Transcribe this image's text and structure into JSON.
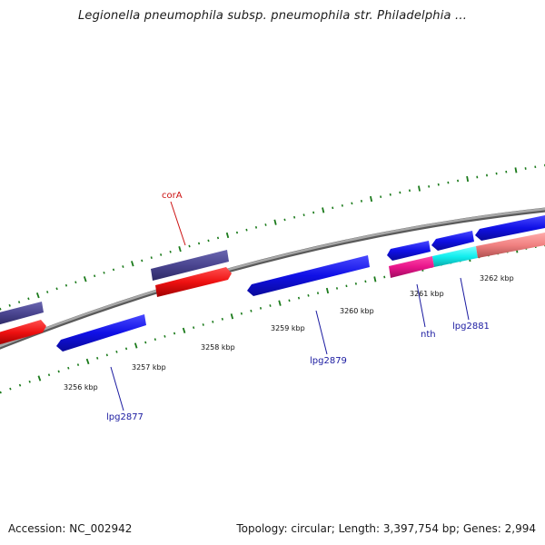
{
  "title": "Legionella pneumophila subsp. pneumophila str. Philadelphia ...",
  "footer": {
    "accession": "Accession: NC_002942",
    "summary": "Topology: circular; Length: 3,397,754 bp; Genes: 2,994"
  },
  "colors": {
    "tick": "#1a7a1a",
    "backbone": "#8a8a8a",
    "gene_blue": "#1010e6",
    "gene_slate": "#4a4590",
    "gene_red": "#ee1111",
    "gene_magenta": "#e8148a",
    "gene_cyan": "#11eeee",
    "gene_pink": "#f08080",
    "label_blue": "#1a1aa0",
    "label_red": "#cc1111"
  },
  "kbp_labels": [
    "3256 kbp",
    "3257 kbp",
    "3258 kbp",
    "3259 kbp",
    "3260 kbp",
    "3261 kbp",
    "3262 kbp"
  ],
  "gene_labels": [
    "lpg2877",
    "corA",
    "lpg2879",
    "nth",
    "lpg2881"
  ]
}
